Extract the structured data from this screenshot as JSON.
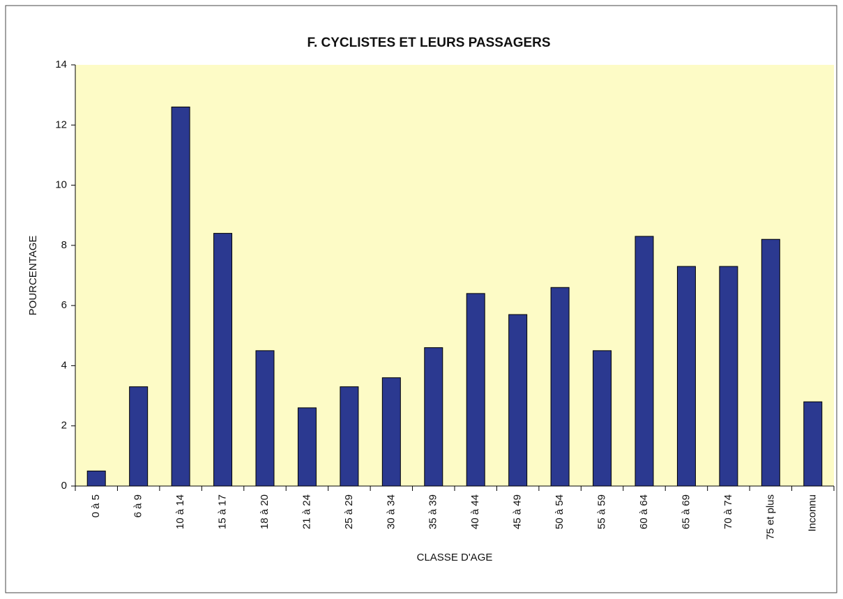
{
  "chart_data": {
    "type": "bar",
    "title": "F. CYCLISTES ET LEURS PASSAGERS",
    "x_label": "CLASSE D'AGE",
    "y_label": "POURCENTAGE",
    "categories": [
      "0 à 5",
      "6 à 9",
      "10 à 14",
      "15 à 17",
      "18 à 20",
      "21 à 24",
      "25 à 29",
      "30 à 34",
      "35 à 39",
      "40 à 44",
      "45 à 49",
      "50 à 54",
      "55 à 59",
      "60 à 64",
      "65 à 69",
      "70 à 74",
      "75 et plus",
      "Inconnu"
    ],
    "values": [
      0.5,
      3.3,
      12.6,
      8.4,
      4.5,
      2.6,
      3.3,
      3.6,
      4.6,
      6.4,
      5.7,
      6.6,
      4.5,
      8.3,
      7.3,
      7.3,
      8.2,
      2.8
    ],
    "color": "#2b3990",
    "ylim": [
      0,
      14
    ],
    "yticks": [
      0,
      2,
      4,
      6,
      8,
      10,
      12,
      14
    ],
    "grid": false
  }
}
